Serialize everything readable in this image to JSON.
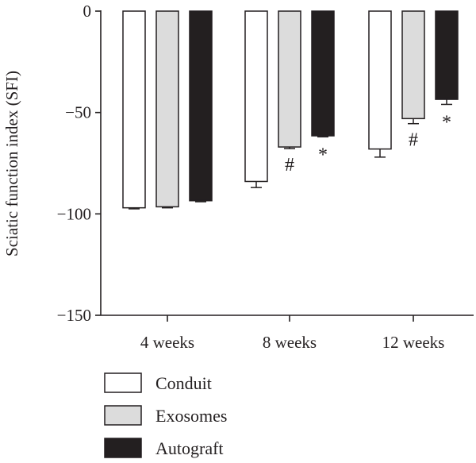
{
  "chart_data": {
    "type": "bar",
    "title": "",
    "xlabel": "",
    "ylabel": "Sciatic function index (SFI)",
    "ylim": [
      -150,
      0
    ],
    "yticks": [
      0,
      -50,
      -100,
      -150
    ],
    "categories": [
      "4 weeks",
      "8 weeks",
      "12 weeks"
    ],
    "series": [
      {
        "name": "Conduit",
        "color": "#ffffff",
        "values": [
          -97,
          -84,
          -68
        ],
        "errors": [
          0.5,
          3,
          4
        ]
      },
      {
        "name": "Exosomes",
        "color": "#dcdcdc",
        "values": [
          -96.5,
          -67,
          -53
        ],
        "errors": [
          0.5,
          0.8,
          2.5
        ]
      },
      {
        "name": "Autograft",
        "color": "#231f20",
        "values": [
          -93.5,
          -61.5,
          -43.5
        ],
        "errors": [
          0.5,
          0.5,
          2.5
        ]
      }
    ],
    "annotations": [
      {
        "text": "#",
        "category": "8 weeks",
        "series": "Exosomes"
      },
      {
        "text": "*",
        "category": "8 weeks",
        "series": "Autograft"
      },
      {
        "text": "#",
        "category": "12 weeks",
        "series": "Exosomes"
      },
      {
        "text": "*",
        "category": "12 weeks",
        "series": "Autograft"
      }
    ],
    "legend": {
      "position": "bottom-left",
      "entries": [
        "Conduit",
        "Exosomes",
        "Autograft"
      ]
    },
    "grid": false
  }
}
